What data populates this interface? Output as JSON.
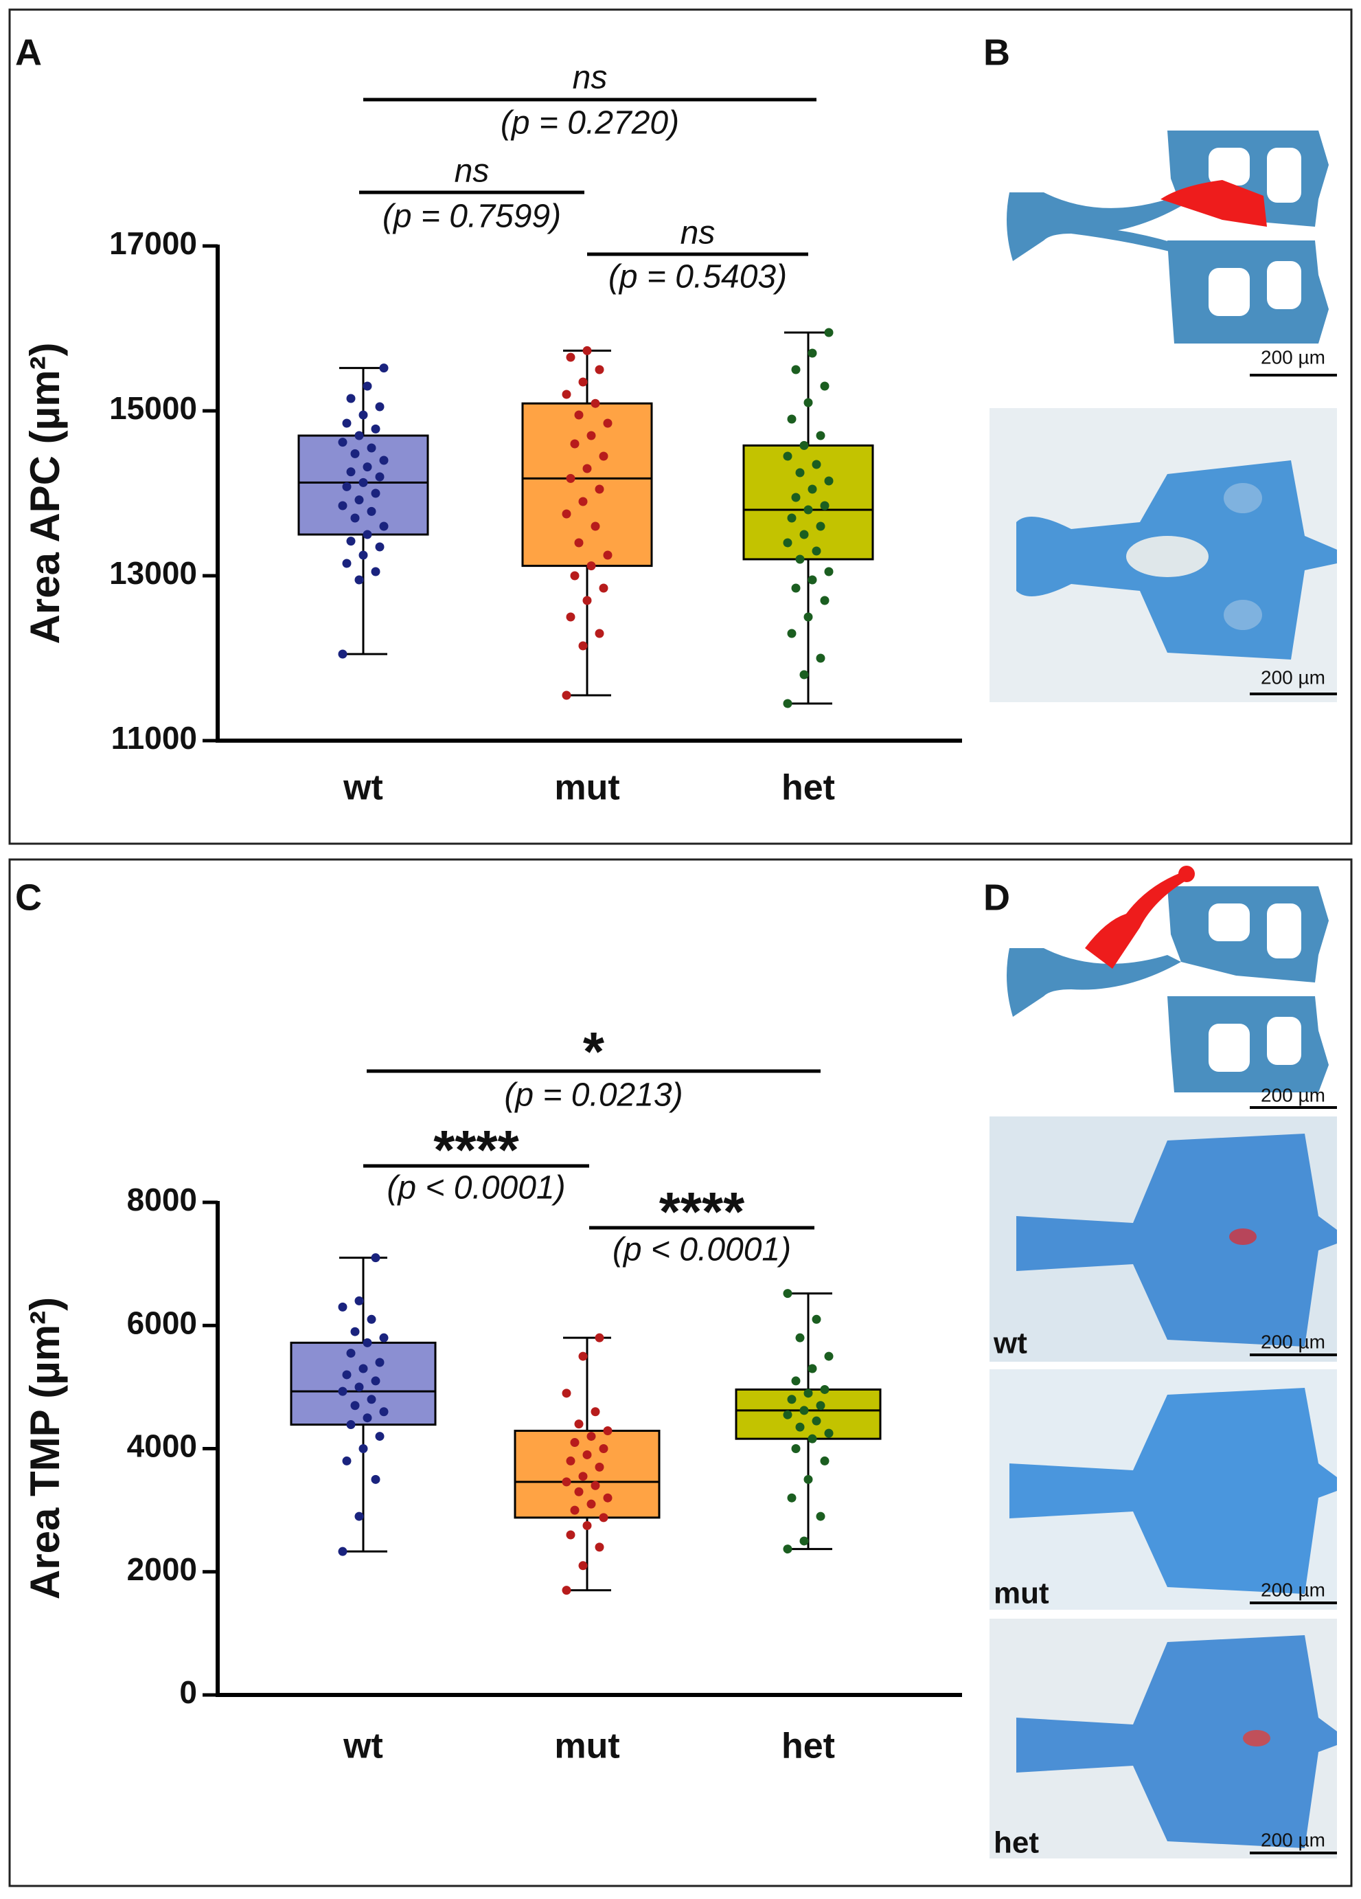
{
  "panel_labels": [
    "A",
    "B",
    "C",
    "D"
  ],
  "scale_bar": "200 µm",
  "image_labels": [
    "wt",
    "mut",
    "het"
  ],
  "chart_data": [
    {
      "type": "box",
      "y_label": "Area APC (µm²)",
      "categories": [
        "wt",
        "mut",
        "het"
      ],
      "ylim": [
        11000,
        17000
      ],
      "yticks": [
        11000,
        13000,
        15000,
        17000
      ],
      "boxes": [
        {
          "color": "#8b8fd2",
          "point_color": "#1a237e",
          "min": 12050,
          "q1": 13500,
          "median": 14130,
          "q3": 14700,
          "max": 15520,
          "points": [
            12050,
            12950,
            13050,
            13150,
            13250,
            13350,
            13420,
            13500,
            13600,
            13700,
            13780,
            13850,
            13920,
            14000,
            14080,
            14130,
            14200,
            14260,
            14320,
            14400,
            14480,
            14550,
            14620,
            14700,
            14780,
            14850,
            14950,
            15050,
            15150,
            15300,
            15520
          ]
        },
        {
          "color": "#ffa344",
          "point_color": "#b71c1c",
          "min": 11550,
          "q1": 13120,
          "median": 14180,
          "q3": 15090,
          "max": 15730,
          "points": [
            11550,
            12150,
            12300,
            12500,
            12700,
            12850,
            13000,
            13120,
            13250,
            13400,
            13600,
            13750,
            13900,
            14050,
            14180,
            14300,
            14450,
            14600,
            14700,
            14850,
            14950,
            15090,
            15200,
            15350,
            15500,
            15650,
            15730
          ]
        },
        {
          "color": "#c3c300",
          "point_color": "#1b5e20",
          "min": 11450,
          "q1": 13200,
          "median": 13800,
          "q3": 14580,
          "max": 15950,
          "points": [
            11450,
            11800,
            12000,
            12300,
            12500,
            12700,
            12850,
            12950,
            13050,
            13200,
            13300,
            13400,
            13500,
            13600,
            13700,
            13800,
            13850,
            13950,
            14050,
            14150,
            14250,
            14350,
            14450,
            14580,
            14700,
            14900,
            15100,
            15300,
            15500,
            15700,
            15950
          ]
        }
      ],
      "comparisons": [
        {
          "groups": [
            "wt",
            "het"
          ],
          "label": "ns",
          "p": "(p = 0.2720)"
        },
        {
          "groups": [
            "wt",
            "mut"
          ],
          "label": "ns",
          "p": "(p = 0.7599)"
        },
        {
          "groups": [
            "mut",
            "het"
          ],
          "label": "ns",
          "p": "(p = 0.5403)"
        }
      ]
    },
    {
      "type": "box",
      "y_label": "Area TMP (µm²)",
      "categories": [
        "wt",
        "mut",
        "het"
      ],
      "ylim": [
        0,
        8000
      ],
      "yticks": [
        0,
        2000,
        4000,
        6000,
        8000
      ],
      "boxes": [
        {
          "color": "#8b8fd2",
          "point_color": "#1a237e",
          "min": 2330,
          "q1": 4390,
          "median": 4930,
          "q3": 5720,
          "max": 7100,
          "points": [
            2330,
            2900,
            3500,
            3800,
            4000,
            4200,
            4390,
            4500,
            4600,
            4700,
            4800,
            4930,
            5000,
            5100,
            5200,
            5300,
            5400,
            5550,
            5720,
            5800,
            5900,
            6100,
            6300,
            6400,
            7100
          ]
        },
        {
          "color": "#ffa344",
          "point_color": "#b71c1c",
          "min": 1700,
          "q1": 2880,
          "median": 3460,
          "q3": 4290,
          "max": 5800,
          "points": [
            1700,
            2100,
            2400,
            2600,
            2750,
            2880,
            3000,
            3100,
            3200,
            3300,
            3400,
            3460,
            3550,
            3700,
            3800,
            3900,
            4000,
            4100,
            4200,
            4290,
            4400,
            4600,
            4900,
            5500,
            5800
          ]
        },
        {
          "color": "#c3c300",
          "point_color": "#1b5e20",
          "min": 2370,
          "q1": 4160,
          "median": 4620,
          "q3": 4960,
          "max": 6520,
          "points": [
            2370,
            2500,
            2900,
            3200,
            3500,
            3800,
            4000,
            4160,
            4250,
            4350,
            4450,
            4550,
            4620,
            4700,
            4800,
            4900,
            4960,
            5100,
            5300,
            5500,
            5800,
            6100,
            6520
          ]
        }
      ],
      "comparisons": [
        {
          "groups": [
            "wt",
            "het"
          ],
          "label": "*",
          "p": "(p = 0.0213)"
        },
        {
          "groups": [
            "wt",
            "mut"
          ],
          "label": "****",
          "p": "(p < 0.0001)"
        },
        {
          "groups": [
            "mut",
            "het"
          ],
          "label": "****",
          "p": "(p < 0.0001)"
        }
      ]
    }
  ]
}
